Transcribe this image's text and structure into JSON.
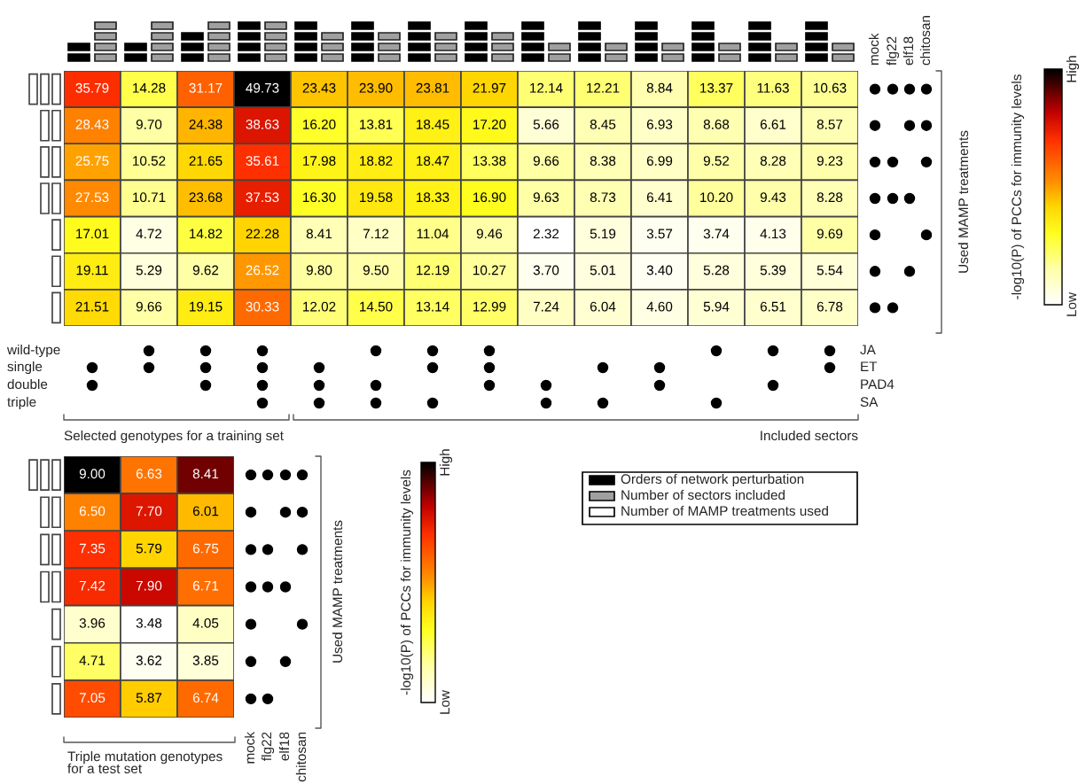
{
  "chart_data": [
    {
      "type": "heatmap",
      "clabel": "-log10(P) of PCCs for immunity levels",
      "categories": [
        null,
        null,
        null,
        null,
        null,
        null,
        null,
        null,
        null,
        null,
        null,
        null,
        null,
        null
      ],
      "y_categories": [
        null,
        null,
        null,
        null,
        null,
        null,
        null
      ],
      "cells": [
        [
          35.79,
          14.28,
          31.17,
          49.73,
          23.43,
          23.9,
          23.81,
          21.97,
          12.14,
          12.21,
          8.84,
          13.37,
          11.63,
          10.63
        ],
        [
          28.43,
          9.7,
          24.38,
          38.63,
          16.2,
          13.81,
          18.45,
          17.2,
          5.66,
          8.45,
          6.93,
          8.68,
          6.61,
          8.57
        ],
        [
          25.75,
          10.52,
          21.65,
          35.61,
          17.98,
          18.82,
          18.47,
          13.38,
          9.66,
          8.38,
          6.99,
          9.52,
          8.28,
          9.23
        ],
        [
          27.53,
          10.71,
          23.68,
          37.53,
          16.3,
          19.58,
          18.33,
          16.9,
          9.63,
          8.73,
          6.41,
          10.2,
          9.43,
          8.28
        ],
        [
          17.01,
          4.72,
          14.82,
          22.28,
          8.41,
          7.12,
          11.04,
          9.46,
          2.32,
          5.19,
          3.57,
          3.74,
          4.13,
          9.69
        ],
        [
          19.11,
          5.29,
          9.62,
          26.52,
          9.8,
          9.5,
          12.19,
          10.27,
          3.7,
          5.01,
          3.4,
          5.28,
          5.39,
          5.54
        ],
        [
          21.51,
          9.66,
          19.15,
          30.33,
          12.02,
          14.5,
          13.14,
          12.99,
          7.24,
          6.04,
          4.6,
          5.94,
          6.51,
          6.78
        ]
      ],
      "clim": [
        2.32,
        49.73
      ],
      "cticks": [
        {
          "value": 2.32,
          "label": "Low"
        },
        {
          "value": 49.73,
          "label": "High"
        }
      ],
      "cell_labels": [
        [
          "35.79",
          "14.28",
          "31.17",
          "49.73",
          "23.43",
          "23.90",
          "23.81",
          "21.97",
          "12.14",
          "12.21",
          "8.84",
          "13.37",
          "11.63",
          "10.63"
        ],
        [
          "28.43",
          "9.70",
          "24.38",
          "38.63",
          "16.20",
          "13.81",
          "18.45",
          "17.20",
          "5.66",
          "8.45",
          "6.93",
          "8.68",
          "6.61",
          "8.57"
        ],
        [
          "25.75",
          "10.52",
          "21.65",
          "35.61",
          "17.98",
          "18.82",
          "18.47",
          "13.38",
          "9.66",
          "8.38",
          "6.99",
          "9.52",
          "8.28",
          "9.23"
        ],
        [
          "27.53",
          "10.71",
          "23.68",
          "37.53",
          "16.30",
          "19.58",
          "18.33",
          "16.90",
          "9.63",
          "8.73",
          "6.41",
          "10.20",
          "9.43",
          "8.28"
        ],
        [
          "17.01",
          "4.72",
          "14.82",
          "22.28",
          "8.41",
          "7.12",
          "11.04",
          "9.46",
          "2.32",
          "5.19",
          "3.57",
          "3.74",
          "4.13",
          "9.69"
        ],
        [
          "19.11",
          "5.29",
          "9.62",
          "26.52",
          "9.80",
          "9.50",
          "12.19",
          "10.27",
          "3.70",
          "5.01",
          "3.40",
          "5.28",
          "5.39",
          "5.54"
        ],
        [
          "21.51",
          "9.66",
          "19.15",
          "30.33",
          "12.02",
          "14.50",
          "13.14",
          "12.99",
          "7.24",
          "6.04",
          "4.60",
          "5.94",
          "6.51",
          "6.78"
        ]
      ],
      "data_labels": true,
      "annotations": [
        "wild-type",
        "single",
        "double",
        "triple",
        "JA",
        "ET",
        "PAD4",
        "SA",
        "Selected genotypes for a training set",
        "Included sectors",
        "Used MAMP treatments",
        "mock",
        "flg22",
        "elf18",
        "chitosan",
        "Orders of network perturbation",
        "Number of sectors included",
        "Number of MAMP treatments used"
      ]
    },
    {
      "type": "heatmap",
      "clabel": "-log10(P) of PCCs for immunity levels",
      "categories": [
        null,
        null,
        null
      ],
      "y_categories": [
        null,
        null,
        null,
        null,
        null,
        null,
        null
      ],
      "cells": [
        [
          9.0,
          6.63,
          8.41
        ],
        [
          6.5,
          7.7,
          6.01
        ],
        [
          7.35,
          5.79,
          6.75
        ],
        [
          7.42,
          7.9,
          6.71
        ],
        [
          3.96,
          3.48,
          4.05
        ],
        [
          4.71,
          3.62,
          3.85
        ],
        [
          7.05,
          5.87,
          6.74
        ]
      ],
      "clim": [
        3.48,
        9.0
      ],
      "cticks": [
        {
          "value": 3.48,
          "label": "Low"
        },
        {
          "value": 9.0,
          "label": "High"
        }
      ],
      "cell_labels": [
        [
          "9.00",
          "6.63",
          "8.41"
        ],
        [
          "6.50",
          "7.70",
          "6.01"
        ],
        [
          "7.35",
          "5.79",
          "6.75"
        ],
        [
          "7.42",
          "7.90",
          "6.71"
        ],
        [
          "3.96",
          "3.48",
          "4.05"
        ],
        [
          "4.71",
          "3.62",
          "3.85"
        ],
        [
          "7.05",
          "5.87",
          "6.74"
        ]
      ],
      "data_labels": true,
      "annotations": [
        "Triple mutation genotypes\nfor a test set",
        "Used MAMP treatments",
        "mock",
        "flg22",
        "elf18",
        "chitosan"
      ]
    }
  ]
}
